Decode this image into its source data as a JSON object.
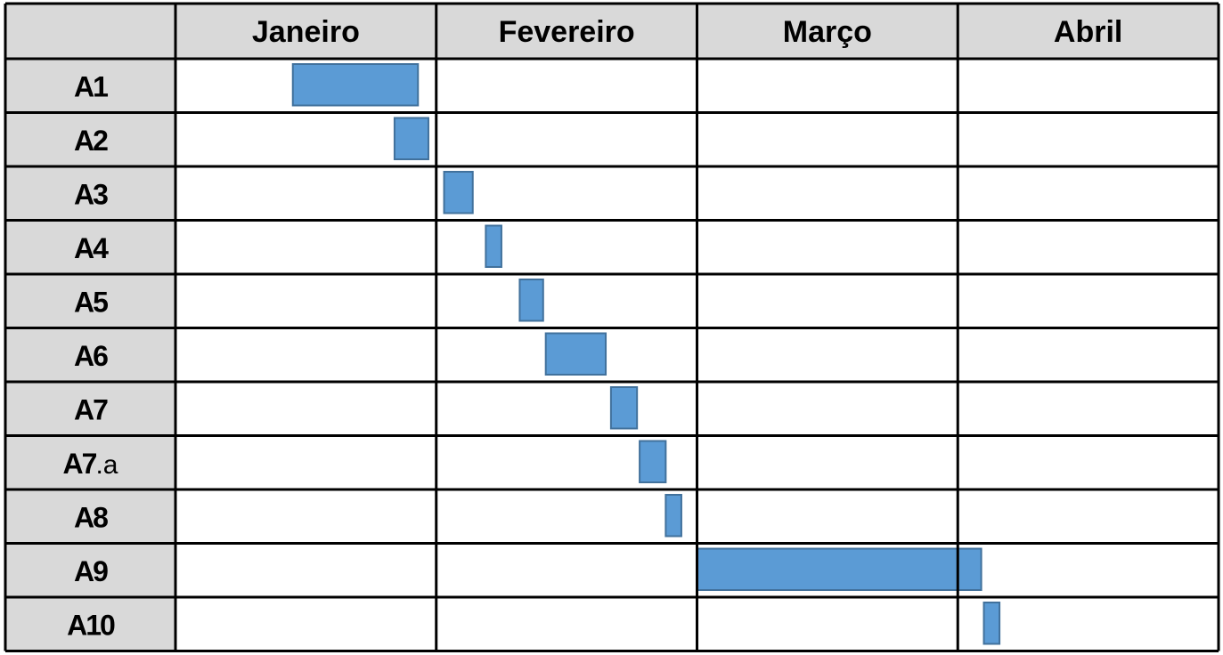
{
  "chart_data": {
    "type": "gantt",
    "columns": [
      "Janeiro",
      "Fevereiro",
      "Março",
      "Abril"
    ],
    "tasks": [
      {
        "label": "A1",
        "suffix": "",
        "start": 0.45,
        "end": 0.93
      },
      {
        "label": "A2",
        "suffix": "",
        "start": 0.84,
        "end": 0.97
      },
      {
        "label": "A3",
        "suffix": "",
        "start": 1.03,
        "end": 1.14
      },
      {
        "label": "A4",
        "suffix": "",
        "start": 1.19,
        "end": 1.25
      },
      {
        "label": "A5",
        "suffix": "",
        "start": 1.32,
        "end": 1.41
      },
      {
        "label": "A6",
        "suffix": "",
        "start": 1.42,
        "end": 1.65
      },
      {
        "label": "A7",
        "suffix": "",
        "start": 1.67,
        "end": 1.77
      },
      {
        "label": "A7",
        "suffix": ".a",
        "start": 1.78,
        "end": 1.88
      },
      {
        "label": "A8",
        "suffix": "",
        "start": 1.88,
        "end": 1.94
      },
      {
        "label": "A9",
        "suffix": "",
        "start": 2.0,
        "end": 3.09
      },
      {
        "label": "A10",
        "suffix": "",
        "start": 3.1,
        "end": 3.16
      }
    ],
    "bar_color": "#5b9bd5",
    "bar_border_color": "#41719c",
    "header_fill": "#d9d9d9",
    "grid_color": "#000000"
  }
}
